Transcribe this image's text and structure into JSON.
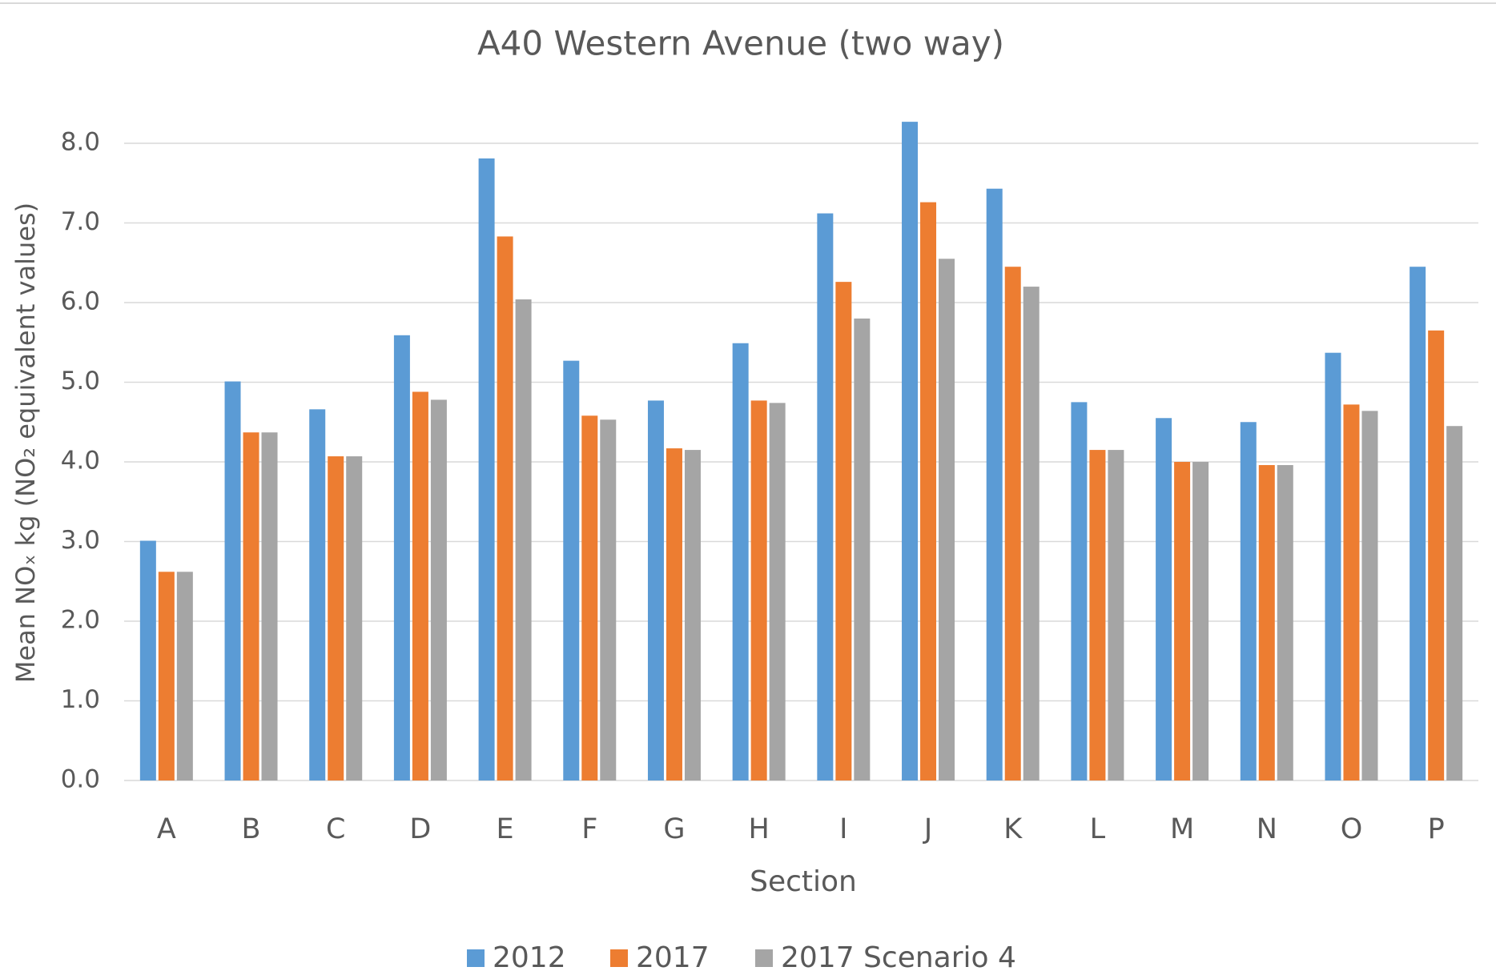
{
  "chart_data": {
    "type": "bar",
    "title": "A40 Western Avenue (two way)",
    "x_label": "Section",
    "y_label": "Mean NOₓ kg (NO₂ equivalent values)",
    "categories": [
      "A",
      "B",
      "C",
      "D",
      "E",
      "F",
      "G",
      "H",
      "I",
      "J",
      "K",
      "L",
      "M",
      "N",
      "O",
      "P"
    ],
    "series": [
      {
        "name": "2012",
        "color": "#5b9bd5",
        "values": [
          3.01,
          5.01,
          4.66,
          5.59,
          7.81,
          5.27,
          4.77,
          5.49,
          7.12,
          8.27,
          7.43,
          4.75,
          4.55,
          4.5,
          5.37,
          6.45
        ]
      },
      {
        "name": "2017",
        "color": "#ed7d31",
        "values": [
          2.62,
          4.37,
          4.07,
          4.88,
          6.83,
          4.58,
          4.17,
          4.77,
          6.26,
          7.26,
          6.45,
          4.15,
          4.0,
          3.96,
          4.72,
          5.65
        ]
      },
      {
        "name": "2017 Scenario 4",
        "color": "#a5a5a5",
        "values": [
          2.62,
          4.37,
          4.07,
          4.78,
          6.04,
          4.53,
          4.15,
          4.74,
          5.8,
          6.55,
          6.2,
          4.15,
          4.0,
          3.96,
          4.64,
          4.45
        ]
      }
    ],
    "ylim": [
      0,
      8
    ],
    "yticks": [
      {
        "value": 0,
        "label": "0.0"
      },
      {
        "value": 1,
        "label": "1.0"
      },
      {
        "value": 2,
        "label": "2.0"
      },
      {
        "value": 3,
        "label": "3.0"
      },
      {
        "value": 4,
        "label": "4.0"
      },
      {
        "value": 5,
        "label": "5.0"
      },
      {
        "value": 6,
        "label": "6.0"
      },
      {
        "value": 7,
        "label": "7.0"
      },
      {
        "value": 8,
        "label": "8.0"
      }
    ],
    "grid": true,
    "legend": "bottom"
  }
}
